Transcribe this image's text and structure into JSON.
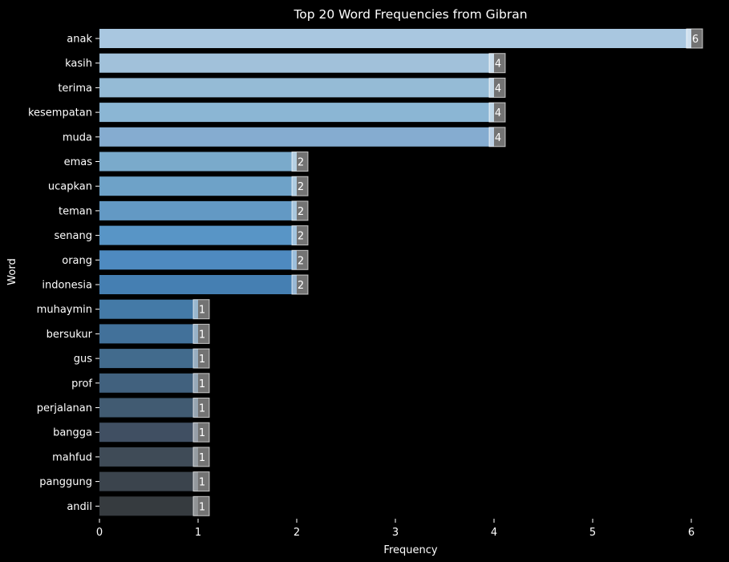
{
  "chart_data": {
    "type": "bar",
    "orientation": "horizontal",
    "title": "Top 20 Word Frequencies from Gibran",
    "xlabel": "Frequency",
    "ylabel": "Word",
    "xlim": [
      0,
      6.35
    ],
    "xticks": [
      "0",
      "1",
      "2",
      "3",
      "4",
      "5",
      "6"
    ],
    "categories": [
      "anak",
      "kasih",
      "terima",
      "kesempatan",
      "muda",
      "emas",
      "ucapkan",
      "teman",
      "senang",
      "orang",
      "indonesia",
      "muhaymin",
      "bersukur",
      "gus",
      "prof",
      "perjalanan",
      "bangga",
      "mahfud",
      "panggung",
      "andil"
    ],
    "values": [
      6,
      4,
      4,
      4,
      4,
      2,
      2,
      2,
      2,
      2,
      2,
      1,
      1,
      1,
      1,
      1,
      1,
      1,
      1,
      1
    ],
    "data_labels": [
      "6",
      "4",
      "4",
      "4",
      "4",
      "2",
      "2",
      "2",
      "2",
      "2",
      "2",
      "1",
      "1",
      "1",
      "1",
      "1",
      "1",
      "1",
      "1",
      "1"
    ],
    "colors": [
      "#a9c7e0",
      "#a1c1da",
      "#95bbd6",
      "#8bb6d4",
      "#85acd0",
      "#7aaacb",
      "#6ea2c8",
      "#6399c4",
      "#5895c6",
      "#4e8ac0",
      "#457fb2",
      "#447aa7",
      "#42719a",
      "#426b8d",
      "#41617e",
      "#415b72",
      "#404f62",
      "#3f4b57",
      "#3b444d",
      "#363b3f"
    ],
    "grid": false,
    "legend": "none",
    "background": "#000000",
    "text_color": "#ffffff"
  }
}
